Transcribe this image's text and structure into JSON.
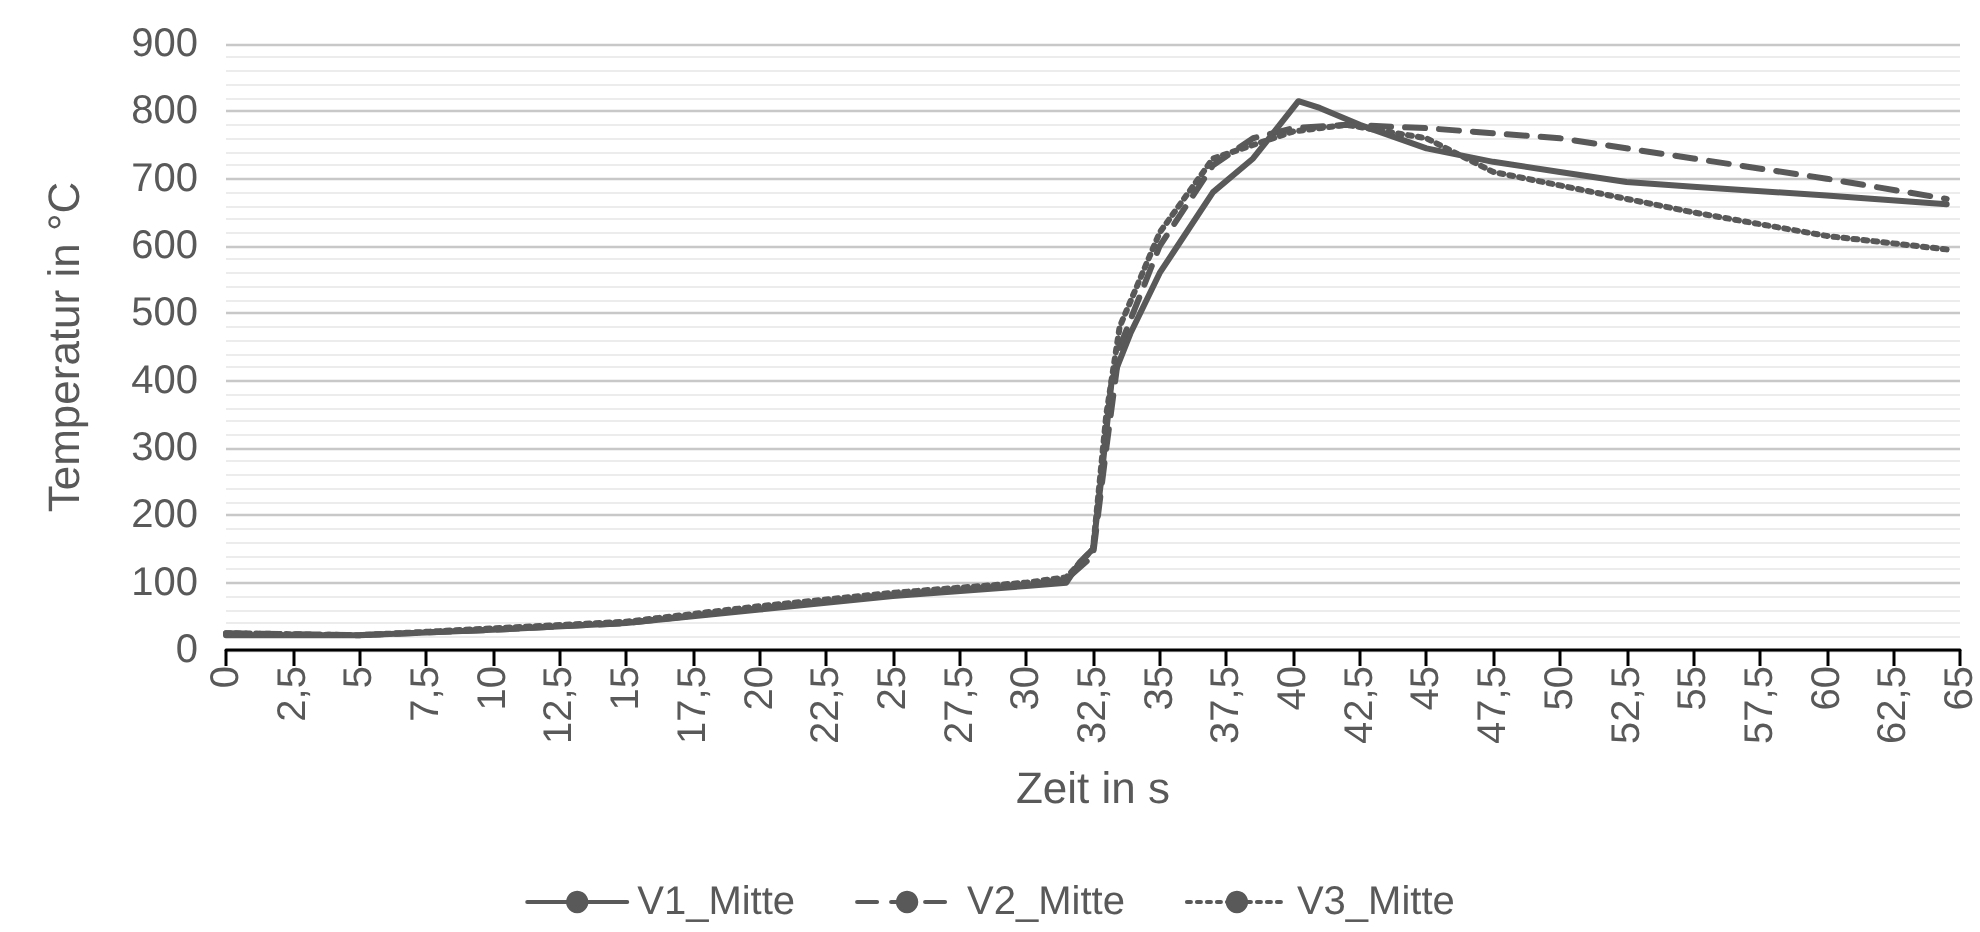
{
  "chart_data": {
    "type": "line",
    "xlabel": "Zeit in s",
    "ylabel": "Temperatur in °C",
    "xlim": [
      0,
      65
    ],
    "xticks": [
      0,
      {
        "value": 2.5,
        "label": "2,5"
      },
      5,
      {
        "value": 7.5,
        "label": "7,5"
      },
      10,
      {
        "value": 12.5,
        "label": "12,5"
      },
      15,
      {
        "value": 17.5,
        "label": "17,5"
      },
      20,
      {
        "value": 22.5,
        "label": "22,5"
      },
      25,
      {
        "value": 27.5,
        "label": "27,5"
      },
      30,
      {
        "value": 32.5,
        "label": "32,5"
      },
      35,
      {
        "value": 37.5,
        "label": "37,5"
      },
      40,
      {
        "value": 42.5,
        "label": "42,5"
      },
      45,
      {
        "value": 47.5,
        "label": "47,5"
      },
      50,
      {
        "value": 52.5,
        "label": "52,5"
      },
      55,
      {
        "value": 57.5,
        "label": "57,5"
      },
      60,
      {
        "value": 62.5,
        "label": "62,5"
      },
      65
    ],
    "ylim": [
      0,
      900
    ],
    "yticks": [
      0,
      100,
      200,
      300,
      400,
      500,
      600,
      700,
      800,
      900
    ],
    "grid": "y",
    "legend": "bottom",
    "marker": "none",
    "series": [
      {
        "name": "V1_Mitte",
        "color": "#595959",
        "line_style": "solid",
        "x": [
          0,
          5,
          10,
          15,
          20,
          25,
          30,
          31.5,
          32,
          32.5,
          32.8,
          33.2,
          33.9,
          35,
          35.5,
          37,
          38.5,
          40.2,
          41,
          42.5,
          45,
          47.5,
          50,
          52.5,
          55,
          60,
          64.5
        ],
        "values": [
          22,
          22,
          30,
          40,
          60,
          80,
          95,
          100,
          130,
          150,
          250,
          400,
          470,
          560,
          590,
          680,
          730,
          815,
          805,
          780,
          745,
          725,
          710,
          695,
          688,
          675,
          662
        ]
      },
      {
        "name": "V2_Mitte",
        "color": "#595959",
        "line_style": "dashed",
        "x": [
          0,
          5,
          10,
          15,
          20,
          25,
          30,
          31.5,
          32.5,
          33,
          33.5,
          35,
          37,
          38.5,
          40,
          42,
          45,
          50,
          55,
          60,
          64.5
        ],
        "values": [
          25,
          22,
          30,
          40,
          62,
          82,
          97,
          105,
          140,
          300,
          450,
          600,
          720,
          760,
          775,
          780,
          775,
          760,
          730,
          700,
          670
        ]
      },
      {
        "name": "V3_Mitte",
        "color": "#595959",
        "line_style": "dotted",
        "x": [
          0,
          5,
          10,
          15,
          20,
          25,
          30,
          31.5,
          32.5,
          33,
          33.5,
          35,
          37,
          40,
          42,
          45,
          47.5,
          50,
          55,
          60,
          64.5
        ],
        "values": [
          25,
          22,
          32,
          42,
          65,
          85,
          100,
          108,
          150,
          350,
          480,
          620,
          730,
          770,
          780,
          760,
          710,
          690,
          650,
          615,
          595
        ]
      }
    ]
  }
}
